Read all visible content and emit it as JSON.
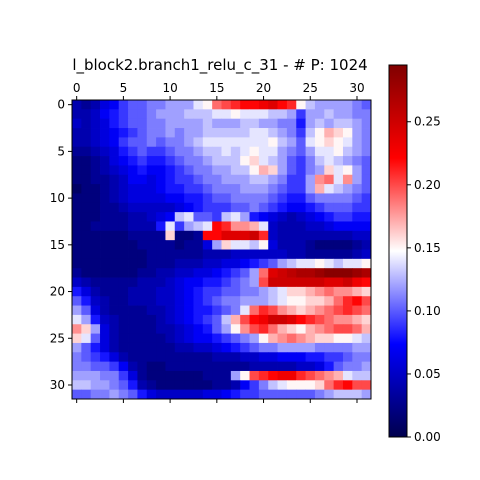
{
  "chart_data": {
    "type": "heatmap",
    "title": "l_block2.branch1_relu_c_31 - # P: 1024",
    "rows": 32,
    "cols": 32,
    "x_ticks": [
      0,
      5,
      10,
      15,
      20,
      25,
      30
    ],
    "y_ticks": [
      0,
      5,
      10,
      15,
      20,
      25,
      30
    ],
    "x_tick_position": "top",
    "colormap": "seismic",
    "colorbar": {
      "min": 0.0,
      "max": 0.295,
      "ticks": [
        "0.00",
        "0.05",
        "0.10",
        "0.15",
        "0.20",
        "0.25"
      ],
      "tick_values": [
        0.0,
        0.05,
        0.1,
        0.15,
        0.2,
        0.25
      ]
    },
    "values": [
      [
        0.04,
        0.03,
        0.04,
        0.06,
        0.07,
        0.09,
        0.1,
        0.1,
        0.11,
        0.11,
        0.12,
        0.12,
        0.12,
        0.14,
        0.15,
        0.19,
        0.2,
        0.21,
        0.22,
        0.22,
        0.23,
        0.24,
        0.22,
        0.21,
        0.15,
        0.13,
        0.12,
        0.12,
        0.12,
        0.12,
        0.11,
        0.1
      ],
      [
        0.04,
        0.04,
        0.05,
        0.07,
        0.08,
        0.09,
        0.1,
        0.1,
        0.11,
        0.12,
        0.12,
        0.12,
        0.13,
        0.13,
        0.13,
        0.14,
        0.14,
        0.15,
        0.14,
        0.14,
        0.14,
        0.13,
        0.13,
        0.12,
        0.09,
        0.12,
        0.12,
        0.13,
        0.12,
        0.12,
        0.11,
        0.11
      ],
      [
        0.05,
        0.04,
        0.05,
        0.06,
        0.08,
        0.09,
        0.1,
        0.1,
        0.11,
        0.11,
        0.12,
        0.12,
        0.12,
        0.12,
        0.13,
        0.12,
        0.12,
        0.12,
        0.13,
        0.13,
        0.12,
        0.12,
        0.11,
        0.11,
        0.08,
        0.12,
        0.13,
        0.12,
        0.13,
        0.13,
        0.12,
        0.11
      ],
      [
        0.04,
        0.04,
        0.05,
        0.06,
        0.07,
        0.08,
        0.09,
        0.1,
        0.11,
        0.11,
        0.12,
        0.11,
        0.12,
        0.12,
        0.13,
        0.13,
        0.13,
        0.13,
        0.13,
        0.14,
        0.14,
        0.13,
        0.12,
        0.11,
        0.09,
        0.13,
        0.15,
        0.17,
        0.16,
        0.15,
        0.12,
        0.11
      ],
      [
        0.04,
        0.04,
        0.05,
        0.06,
        0.07,
        0.09,
        0.1,
        0.1,
        0.11,
        0.1,
        0.11,
        0.11,
        0.12,
        0.13,
        0.14,
        0.14,
        0.14,
        0.14,
        0.14,
        0.14,
        0.14,
        0.15,
        0.13,
        0.12,
        0.1,
        0.14,
        0.15,
        0.16,
        0.15,
        0.14,
        0.12,
        0.11
      ],
      [
        0.03,
        0.03,
        0.04,
        0.05,
        0.06,
        0.08,
        0.09,
        0.1,
        0.09,
        0.09,
        0.1,
        0.11,
        0.11,
        0.12,
        0.13,
        0.13,
        0.14,
        0.13,
        0.14,
        0.15,
        0.14,
        0.14,
        0.12,
        0.11,
        0.1,
        0.12,
        0.14,
        0.14,
        0.15,
        0.13,
        0.12,
        0.11
      ],
      [
        0.02,
        0.02,
        0.03,
        0.04,
        0.06,
        0.07,
        0.08,
        0.09,
        0.08,
        0.08,
        0.09,
        0.1,
        0.11,
        0.11,
        0.12,
        0.13,
        0.13,
        0.13,
        0.15,
        0.16,
        0.14,
        0.13,
        0.12,
        0.1,
        0.09,
        0.11,
        0.13,
        0.14,
        0.13,
        0.12,
        0.11,
        0.1
      ],
      [
        0.02,
        0.02,
        0.03,
        0.04,
        0.05,
        0.06,
        0.07,
        0.08,
        0.07,
        0.07,
        0.08,
        0.09,
        0.1,
        0.11,
        0.11,
        0.12,
        0.12,
        0.13,
        0.13,
        0.15,
        0.17,
        0.16,
        0.12,
        0.1,
        0.09,
        0.11,
        0.12,
        0.16,
        0.14,
        0.15,
        0.12,
        0.1
      ],
      [
        0.02,
        0.02,
        0.03,
        0.03,
        0.04,
        0.05,
        0.07,
        0.07,
        0.06,
        0.07,
        0.08,
        0.09,
        0.09,
        0.1,
        0.11,
        0.11,
        0.12,
        0.12,
        0.12,
        0.13,
        0.13,
        0.12,
        0.11,
        0.09,
        0.09,
        0.12,
        0.18,
        0.19,
        0.14,
        0.18,
        0.12,
        0.1
      ],
      [
        0.01,
        0.02,
        0.02,
        0.03,
        0.04,
        0.05,
        0.06,
        0.06,
        0.06,
        0.07,
        0.08,
        0.08,
        0.09,
        0.09,
        0.1,
        0.11,
        0.11,
        0.11,
        0.12,
        0.12,
        0.12,
        0.11,
        0.1,
        0.09,
        0.09,
        0.12,
        0.17,
        0.14,
        0.13,
        0.12,
        0.11,
        0.1
      ],
      [
        0.02,
        0.02,
        0.02,
        0.03,
        0.04,
        0.05,
        0.06,
        0.06,
        0.06,
        0.06,
        0.07,
        0.07,
        0.08,
        0.08,
        0.09,
        0.1,
        0.1,
        0.11,
        0.11,
        0.11,
        0.11,
        0.1,
        0.09,
        0.08,
        0.08,
        0.1,
        0.11,
        0.11,
        0.11,
        0.11,
        0.1,
        0.09
      ],
      [
        0.02,
        0.02,
        0.02,
        0.03,
        0.03,
        0.04,
        0.05,
        0.05,
        0.05,
        0.05,
        0.05,
        0.06,
        0.07,
        0.08,
        0.09,
        0.09,
        0.09,
        0.1,
        0.1,
        0.11,
        0.1,
        0.09,
        0.08,
        0.07,
        0.07,
        0.08,
        0.09,
        0.1,
        0.1,
        0.1,
        0.09,
        0.09
      ],
      [
        0.02,
        0.02,
        0.02,
        0.03,
        0.03,
        0.03,
        0.04,
        0.04,
        0.05,
        0.06,
        0.07,
        0.13,
        0.14,
        0.1,
        0.1,
        0.09,
        0.13,
        0.14,
        0.12,
        0.08,
        0.07,
        0.06,
        0.05,
        0.04,
        0.05,
        0.06,
        0.07,
        0.08,
        0.09,
        0.09,
        0.08,
        0.08
      ],
      [
        0.02,
        0.02,
        0.03,
        0.03,
        0.03,
        0.03,
        0.04,
        0.04,
        0.04,
        0.08,
        0.14,
        0.09,
        0.12,
        0.13,
        0.14,
        0.22,
        0.21,
        0.18,
        0.18,
        0.17,
        0.14,
        0.05,
        0.04,
        0.04,
        0.04,
        0.05,
        0.05,
        0.06,
        0.07,
        0.07,
        0.07,
        0.07
      ],
      [
        0.02,
        0.02,
        0.02,
        0.02,
        0.02,
        0.02,
        0.03,
        0.03,
        0.03,
        0.03,
        0.16,
        0.02,
        0.02,
        0.03,
        0.22,
        0.22,
        0.24,
        0.24,
        0.24,
        0.25,
        0.21,
        0.05,
        0.04,
        0.04,
        0.04,
        0.04,
        0.04,
        0.04,
        0.04,
        0.04,
        0.05,
        0.05
      ],
      [
        0.02,
        0.02,
        0.02,
        0.02,
        0.02,
        0.02,
        0.02,
        0.03,
        0.03,
        0.03,
        0.03,
        0.02,
        0.03,
        0.03,
        0.06,
        0.12,
        0.16,
        0.14,
        0.14,
        0.13,
        0.15,
        0.06,
        0.04,
        0.04,
        0.04,
        0.03,
        0.02,
        0.02,
        0.02,
        0.02,
        0.03,
        0.04
      ],
      [
        0.02,
        0.02,
        0.02,
        0.02,
        0.02,
        0.02,
        0.02,
        0.02,
        0.03,
        0.03,
        0.03,
        0.03,
        0.03,
        0.03,
        0.04,
        0.04,
        0.04,
        0.05,
        0.05,
        0.05,
        0.05,
        0.05,
        0.05,
        0.04,
        0.04,
        0.03,
        0.03,
        0.03,
        0.03,
        0.03,
        0.04,
        0.05
      ],
      [
        0.02,
        0.02,
        0.02,
        0.02,
        0.02,
        0.02,
        0.02,
        0.02,
        0.03,
        0.03,
        0.03,
        0.04,
        0.04,
        0.04,
        0.05,
        0.05,
        0.06,
        0.06,
        0.07,
        0.08,
        0.09,
        0.1,
        0.12,
        0.13,
        0.14,
        0.14,
        0.15,
        0.14,
        0.13,
        0.14,
        0.14,
        0.15
      ],
      [
        0.03,
        0.02,
        0.02,
        0.02,
        0.02,
        0.02,
        0.02,
        0.03,
        0.03,
        0.04,
        0.04,
        0.05,
        0.05,
        0.06,
        0.06,
        0.07,
        0.08,
        0.09,
        0.1,
        0.12,
        0.19,
        0.24,
        0.25,
        0.26,
        0.27,
        0.27,
        0.28,
        0.29,
        0.29,
        0.29,
        0.28,
        0.27
      ],
      [
        0.05,
        0.04,
        0.03,
        0.03,
        0.03,
        0.03,
        0.03,
        0.04,
        0.04,
        0.04,
        0.05,
        0.06,
        0.07,
        0.07,
        0.08,
        0.08,
        0.09,
        0.1,
        0.11,
        0.12,
        0.2,
        0.25,
        0.25,
        0.25,
        0.25,
        0.25,
        0.25,
        0.24,
        0.24,
        0.25,
        0.23,
        0.22
      ],
      [
        0.08,
        0.06,
        0.04,
        0.03,
        0.03,
        0.03,
        0.04,
        0.04,
        0.04,
        0.05,
        0.05,
        0.06,
        0.07,
        0.08,
        0.09,
        0.09,
        0.1,
        0.1,
        0.11,
        0.11,
        0.12,
        0.13,
        0.14,
        0.16,
        0.16,
        0.17,
        0.18,
        0.19,
        0.18,
        0.18,
        0.17,
        0.16
      ],
      [
        0.1,
        0.08,
        0.05,
        0.04,
        0.03,
        0.03,
        0.04,
        0.04,
        0.04,
        0.05,
        0.05,
        0.06,
        0.07,
        0.08,
        0.09,
        0.1,
        0.11,
        0.11,
        0.12,
        0.12,
        0.12,
        0.13,
        0.14,
        0.15,
        0.15,
        0.16,
        0.16,
        0.17,
        0.19,
        0.21,
        0.22,
        0.2
      ],
      [
        0.12,
        0.1,
        0.06,
        0.04,
        0.03,
        0.03,
        0.03,
        0.03,
        0.04,
        0.04,
        0.05,
        0.06,
        0.07,
        0.08,
        0.08,
        0.09,
        0.1,
        0.11,
        0.14,
        0.19,
        0.21,
        0.2,
        0.18,
        0.17,
        0.16,
        0.17,
        0.18,
        0.19,
        0.2,
        0.21,
        0.2,
        0.19
      ],
      [
        0.14,
        0.12,
        0.08,
        0.05,
        0.04,
        0.03,
        0.03,
        0.03,
        0.03,
        0.04,
        0.05,
        0.06,
        0.07,
        0.08,
        0.09,
        0.1,
        0.13,
        0.17,
        0.2,
        0.22,
        0.23,
        0.25,
        0.25,
        0.24,
        0.22,
        0.21,
        0.2,
        0.19,
        0.18,
        0.18,
        0.17,
        0.16
      ],
      [
        0.18,
        0.16,
        0.12,
        0.06,
        0.04,
        0.03,
        0.03,
        0.03,
        0.03,
        0.04,
        0.04,
        0.05,
        0.06,
        0.07,
        0.08,
        0.1,
        0.12,
        0.15,
        0.18,
        0.2,
        0.21,
        0.19,
        0.17,
        0.16,
        0.15,
        0.17,
        0.18,
        0.19,
        0.2,
        0.2,
        0.19,
        0.17
      ],
      [
        0.16,
        0.14,
        0.1,
        0.06,
        0.04,
        0.03,
        0.03,
        0.03,
        0.03,
        0.03,
        0.04,
        0.05,
        0.06,
        0.07,
        0.07,
        0.08,
        0.09,
        0.1,
        0.11,
        0.12,
        0.15,
        0.17,
        0.18,
        0.19,
        0.18,
        0.17,
        0.16,
        0.16,
        0.15,
        0.15,
        0.14,
        0.13
      ],
      [
        0.12,
        0.1,
        0.08,
        0.06,
        0.04,
        0.03,
        0.03,
        0.03,
        0.03,
        0.03,
        0.03,
        0.04,
        0.04,
        0.05,
        0.05,
        0.06,
        0.07,
        0.08,
        0.09,
        0.1,
        0.11,
        0.11,
        0.12,
        0.12,
        0.12,
        0.12,
        0.11,
        0.11,
        0.11,
        0.11,
        0.12,
        0.12
      ],
      [
        0.11,
        0.1,
        0.09,
        0.08,
        0.06,
        0.04,
        0.03,
        0.03,
        0.03,
        0.03,
        0.03,
        0.03,
        0.03,
        0.03,
        0.03,
        0.04,
        0.04,
        0.04,
        0.05,
        0.05,
        0.06,
        0.06,
        0.07,
        0.07,
        0.07,
        0.08,
        0.08,
        0.09,
        0.09,
        0.1,
        0.11,
        0.11
      ],
      [
        0.11,
        0.11,
        0.1,
        0.1,
        0.09,
        0.07,
        0.04,
        0.03,
        0.02,
        0.02,
        0.03,
        0.03,
        0.03,
        0.03,
        0.03,
        0.03,
        0.03,
        0.03,
        0.03,
        0.04,
        0.04,
        0.04,
        0.04,
        0.04,
        0.05,
        0.05,
        0.06,
        0.08,
        0.1,
        0.11,
        0.11,
        0.12
      ],
      [
        0.12,
        0.12,
        0.12,
        0.11,
        0.11,
        0.09,
        0.06,
        0.03,
        0.02,
        0.02,
        0.02,
        0.02,
        0.02,
        0.02,
        0.03,
        0.03,
        0.03,
        0.12,
        0.15,
        0.2,
        0.21,
        0.22,
        0.23,
        0.23,
        0.21,
        0.2,
        0.19,
        0.18,
        0.17,
        0.14,
        0.13,
        0.13
      ],
      [
        0.13,
        0.13,
        0.12,
        0.12,
        0.11,
        0.1,
        0.08,
        0.04,
        0.03,
        0.02,
        0.02,
        0.02,
        0.02,
        0.02,
        0.02,
        0.03,
        0.03,
        0.04,
        0.07,
        0.09,
        0.11,
        0.13,
        0.14,
        0.15,
        0.15,
        0.15,
        0.16,
        0.19,
        0.21,
        0.22,
        0.2,
        0.2
      ],
      [
        0.1,
        0.1,
        0.11,
        0.11,
        0.12,
        0.11,
        0.1,
        0.08,
        0.06,
        0.05,
        0.05,
        0.05,
        0.05,
        0.05,
        0.06,
        0.06,
        0.07,
        0.08,
        0.09,
        0.09,
        0.1,
        0.1,
        0.1,
        0.1,
        0.1,
        0.1,
        0.11,
        0.12,
        0.13,
        0.13,
        0.13,
        0.12
      ]
    ]
  }
}
